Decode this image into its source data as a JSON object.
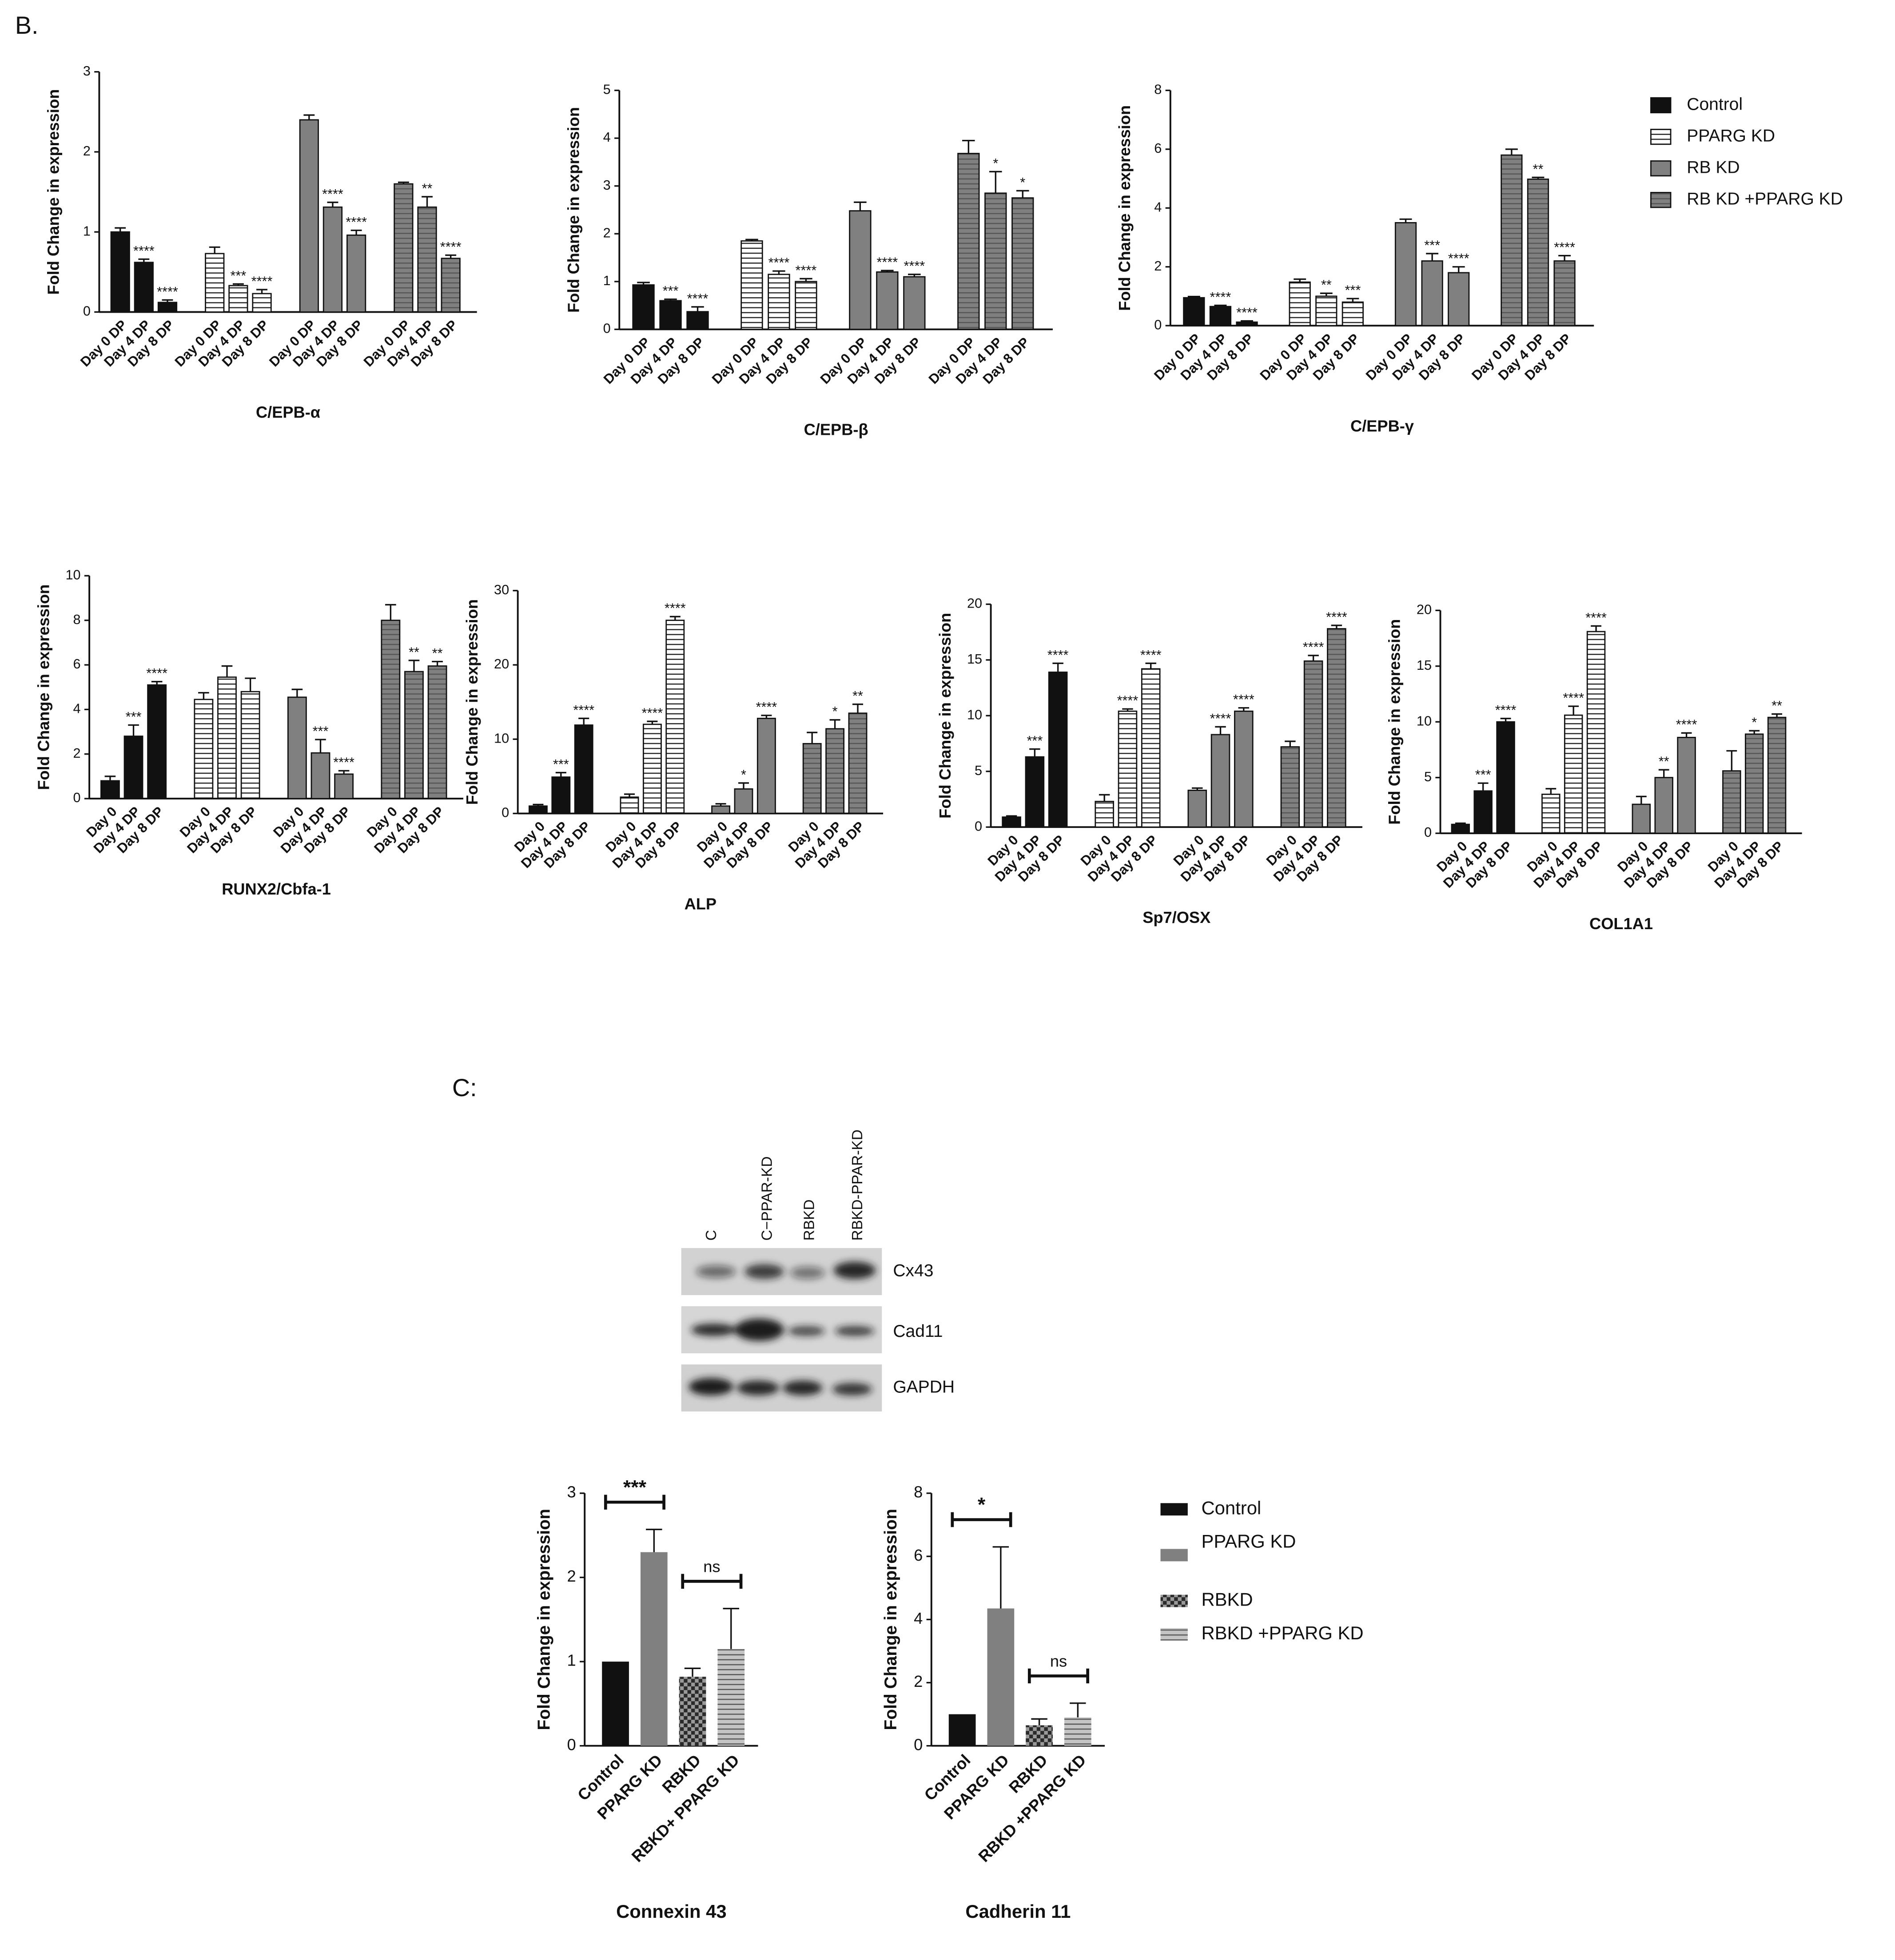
{
  "panel_b_label": "B.",
  "panel_c_label": "C:",
  "legend_b": [
    {
      "name": "Control",
      "color": "#111111",
      "pattern": "solid"
    },
    {
      "name": "PPARG KD",
      "color": "#ffffff",
      "pattern": "hlines"
    },
    {
      "name": "RB KD",
      "color": "#808080",
      "pattern": "solid"
    },
    {
      "name": "RB KD +PPARG KD",
      "color": "#808080",
      "pattern": "hlines"
    }
  ],
  "legend_c": [
    {
      "name": "Control",
      "color": "#111111",
      "pattern": "solid"
    },
    {
      "name": "PPARG KD",
      "color": "#808080",
      "pattern": "solid"
    },
    {
      "name": "RBKD",
      "color": "#9a9a9a",
      "pattern": "checker"
    },
    {
      "name": "RBKD +PPARG KD",
      "color": "#c4c4c4",
      "pattern": "hlines"
    }
  ],
  "blot": {
    "lanes": [
      "C",
      "C−PPAR-KD",
      "RBKD",
      "RBKD-PPAR-KD"
    ],
    "proteins": [
      "Cx43",
      "Cad11",
      "GAPDH"
    ]
  },
  "chart_data": [
    {
      "type": "bar",
      "title": "C/EPB-α",
      "y_label": "Fold Change in expression",
      "categories": [
        "Day 0 DP",
        "Day 4 DP",
        "Day 8 DP"
      ],
      "ylim": [
        0,
        3
      ],
      "yticks": [
        0,
        1,
        2,
        3
      ],
      "series": [
        {
          "values": [
            1.0,
            0.62,
            0.12
          ],
          "errors": [
            0.05,
            0.04,
            0.03
          ],
          "annotations": [
            null,
            "****",
            "****"
          ]
        },
        {
          "values": [
            0.73,
            0.33,
            0.23
          ],
          "errors": [
            0.08,
            0.02,
            0.05
          ],
          "annotations": [
            null,
            "***",
            "****"
          ]
        },
        {
          "values": [
            2.4,
            1.31,
            0.96
          ],
          "errors": [
            0.06,
            0.06,
            0.06
          ],
          "annotations": [
            null,
            "****",
            "****"
          ]
        },
        {
          "values": [
            1.6,
            1.31,
            0.67
          ],
          "errors": [
            0.02,
            0.13,
            0.04
          ],
          "annotations": [
            null,
            "**",
            "****"
          ]
        }
      ]
    },
    {
      "type": "bar",
      "title": "C/EPB-β",
      "y_label": "Fold Change in expression",
      "categories": [
        "Day 0 DP",
        "Day 4 DP",
        "Day 8 DP"
      ],
      "ylim": [
        0,
        5
      ],
      "yticks": [
        0,
        1,
        2,
        3,
        4,
        5
      ],
      "series": [
        {
          "values": [
            0.93,
            0.6,
            0.37
          ],
          "errors": [
            0.05,
            0.03,
            0.1
          ],
          "annotations": [
            null,
            "***",
            "****"
          ]
        },
        {
          "values": [
            1.85,
            1.15,
            1.0
          ],
          "errors": [
            0.03,
            0.07,
            0.06
          ],
          "annotations": [
            null,
            "****",
            "****"
          ]
        },
        {
          "values": [
            2.48,
            1.2,
            1.1
          ],
          "errors": [
            0.18,
            0.03,
            0.05
          ],
          "annotations": [
            null,
            "****",
            "****"
          ]
        },
        {
          "values": [
            3.68,
            2.85,
            2.75
          ],
          "errors": [
            0.27,
            0.45,
            0.15
          ],
          "annotations": [
            null,
            "*",
            "*"
          ]
        }
      ]
    },
    {
      "type": "bar",
      "title": "C/EPB-γ",
      "y_label": "Fold Change in expression",
      "categories": [
        "Day 0 DP",
        "Day 4 DP",
        "Day 8 DP"
      ],
      "ylim": [
        0,
        8
      ],
      "yticks": [
        0,
        2,
        4,
        6,
        8
      ],
      "series": [
        {
          "values": [
            0.95,
            0.65,
            0.12
          ],
          "errors": [
            0.04,
            0.04,
            0.04
          ],
          "annotations": [
            null,
            "****",
            "****"
          ]
        },
        {
          "values": [
            1.48,
            1.0,
            0.8
          ],
          "errors": [
            0.1,
            0.1,
            0.12
          ],
          "annotations": [
            null,
            "**",
            "***"
          ]
        },
        {
          "values": [
            3.5,
            2.2,
            1.8
          ],
          "errors": [
            0.12,
            0.25,
            0.2
          ],
          "annotations": [
            null,
            "***",
            "****"
          ]
        },
        {
          "values": [
            5.8,
            4.98,
            2.2
          ],
          "errors": [
            0.2,
            0.06,
            0.18
          ],
          "annotations": [
            null,
            "**",
            "****"
          ]
        }
      ]
    },
    {
      "type": "bar",
      "title": "RUNX2/Cbfa-1",
      "y_label": "Fold Change in expression",
      "categories": [
        "Day 0",
        "Day 4 DP",
        "Day 8 DP"
      ],
      "ylim": [
        0,
        10
      ],
      "yticks": [
        0,
        2,
        4,
        6,
        8,
        10
      ],
      "series": [
        {
          "values": [
            0.8,
            2.8,
            5.1
          ],
          "errors": [
            0.2,
            0.5,
            0.15
          ],
          "annotations": [
            null,
            "***",
            "****"
          ]
        },
        {
          "values": [
            4.45,
            5.45,
            4.8
          ],
          "errors": [
            0.3,
            0.5,
            0.6
          ],
          "annotations": [
            null,
            null,
            null
          ]
        },
        {
          "values": [
            4.55,
            2.05,
            1.1
          ],
          "errors": [
            0.35,
            0.6,
            0.15
          ],
          "annotations": [
            null,
            "***",
            "****"
          ]
        },
        {
          "values": [
            8.0,
            5.7,
            5.95
          ],
          "errors": [
            0.7,
            0.5,
            0.2
          ],
          "annotations": [
            null,
            "**",
            "**"
          ]
        }
      ]
    },
    {
      "type": "bar",
      "title": "ALP",
      "y_label": "Fold Change in expression",
      "categories": [
        "Day 0",
        "Day 4 DP",
        "Day 8 DP"
      ],
      "ylim": [
        0,
        30
      ],
      "yticks": [
        0,
        10,
        20,
        30
      ],
      "series": [
        {
          "values": [
            1.0,
            4.9,
            11.9
          ],
          "errors": [
            0.2,
            0.6,
            0.9
          ],
          "annotations": [
            null,
            "***",
            "****"
          ]
        },
        {
          "values": [
            2.2,
            12.0,
            26.0
          ],
          "errors": [
            0.4,
            0.4,
            0.5
          ],
          "annotations": [
            null,
            "****",
            "****"
          ]
        },
        {
          "values": [
            1.0,
            3.3,
            12.8
          ],
          "errors": [
            0.3,
            0.8,
            0.4
          ],
          "annotations": [
            null,
            "*",
            "****"
          ]
        },
        {
          "values": [
            9.4,
            11.4,
            13.5
          ],
          "errors": [
            1.5,
            1.2,
            1.2
          ],
          "annotations": [
            null,
            "*",
            "**"
          ]
        }
      ]
    },
    {
      "type": "bar",
      "title": "Sp7/OSX",
      "y_label": "Fold Change in expression",
      "categories": [
        "Day 0",
        "Day 4 DP",
        "Day 8 DP"
      ],
      "ylim": [
        0,
        20
      ],
      "yticks": [
        0,
        5,
        10,
        15,
        20
      ],
      "series": [
        {
          "values": [
            0.9,
            6.3,
            13.9
          ],
          "errors": [
            0.1,
            0.7,
            0.8
          ],
          "annotations": [
            null,
            "***",
            "****"
          ]
        },
        {
          "values": [
            2.3,
            10.4,
            14.2
          ],
          "errors": [
            0.6,
            0.2,
            0.5
          ],
          "annotations": [
            null,
            "****",
            "****"
          ]
        },
        {
          "values": [
            3.3,
            8.3,
            10.4
          ],
          "errors": [
            0.2,
            0.7,
            0.3
          ],
          "annotations": [
            null,
            "****",
            "****"
          ]
        },
        {
          "values": [
            7.2,
            14.9,
            17.8
          ],
          "errors": [
            0.5,
            0.5,
            0.3
          ],
          "annotations": [
            null,
            "****",
            "****"
          ]
        }
      ]
    },
    {
      "type": "bar",
      "title": "COL1A1",
      "y_label": "Fold Change in expression",
      "categories": [
        "Day 0",
        "Day 4 DP",
        "Day 8 DP"
      ],
      "ylim": [
        0,
        20
      ],
      "yticks": [
        0,
        5,
        10,
        15,
        20
      ],
      "series": [
        {
          "values": [
            0.8,
            3.8,
            10.0
          ],
          "errors": [
            0.1,
            0.7,
            0.3
          ],
          "annotations": [
            null,
            "***",
            "****"
          ]
        },
        {
          "values": [
            3.5,
            10.6,
            18.1
          ],
          "errors": [
            0.5,
            0.8,
            0.5
          ],
          "annotations": [
            null,
            "****",
            "****"
          ]
        },
        {
          "values": [
            2.6,
            5.0,
            8.6
          ],
          "errors": [
            0.7,
            0.7,
            0.4
          ],
          "annotations": [
            null,
            "**",
            "****"
          ]
        },
        {
          "values": [
            5.6,
            8.9,
            10.4
          ],
          "errors": [
            1.8,
            0.3,
            0.3
          ],
          "annotations": [
            null,
            "*",
            "**"
          ]
        }
      ]
    },
    {
      "type": "bar",
      "title": "Connexin 43",
      "y_label": "Fold Change in expression",
      "categories": [
        "Control",
        "PPARG KD",
        "RBKD",
        "RBKD+ PPARG KD"
      ],
      "ylim": [
        0,
        3
      ],
      "yticks": [
        0,
        1,
        2,
        3
      ],
      "values": [
        1.0,
        2.3,
        0.82,
        1.15
      ],
      "errors": [
        null,
        0.27,
        0.1,
        0.48
      ],
      "brackets": [
        {
          "between": [
            0,
            1
          ],
          "label": "***"
        },
        {
          "between": [
            2,
            3
          ],
          "label": "ns"
        }
      ]
    },
    {
      "type": "bar",
      "title": "Cadherin 11",
      "y_label": "Fold Change in expression",
      "categories": [
        "Control",
        "PPARG KD",
        "RBKD",
        "RBKD +PPARG KD"
      ],
      "ylim": [
        0,
        8
      ],
      "yticks": [
        0,
        2,
        4,
        6,
        8
      ],
      "values": [
        1.0,
        4.35,
        0.65,
        0.9
      ],
      "errors": [
        null,
        1.95,
        0.2,
        0.45
      ],
      "brackets": [
        {
          "between": [
            0,
            1
          ],
          "label": "*"
        },
        {
          "between": [
            2,
            3
          ],
          "label": "ns"
        }
      ]
    }
  ]
}
